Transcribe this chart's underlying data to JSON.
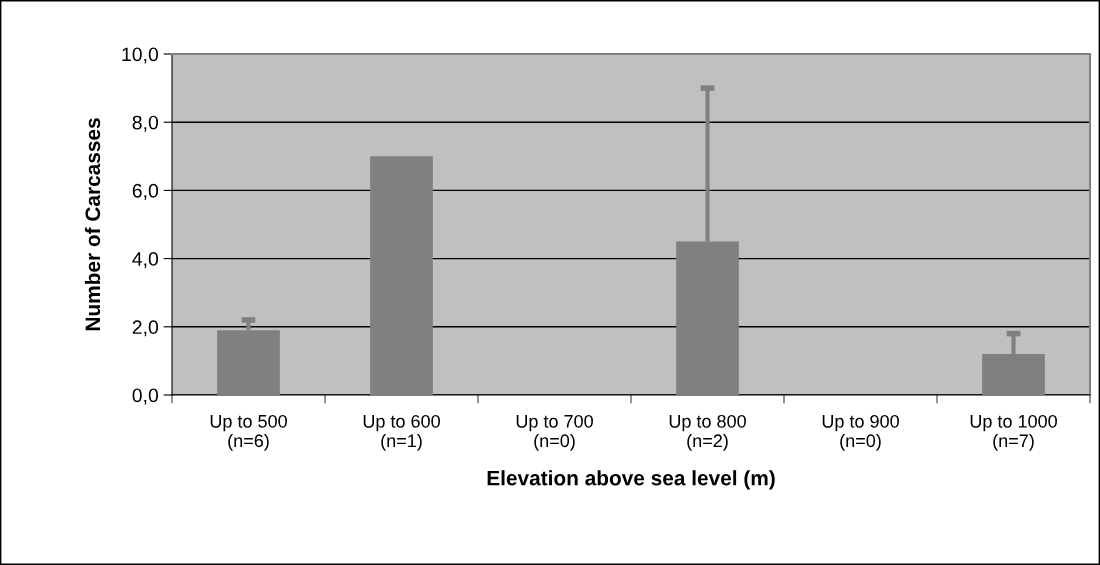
{
  "chart_data": {
    "type": "bar",
    "xlabel": "Elevation above sea level (m)",
    "ylabel": "Number of Carcasses",
    "categories": [
      "Up to 500\n(n=6)",
      "Up to 600\n(n=1)",
      "Up to 700\n(n=0)",
      "Up to 800\n(n=2)",
      "Up to 900\n(n=0)",
      "Up to 1000\n(n=7)"
    ],
    "values": [
      1.9,
      7.0,
      0,
      4.5,
      0,
      1.2
    ],
    "errors": [
      [
        1.9,
        2.2
      ],
      null,
      null,
      [
        4.5,
        9.0
      ],
      null,
      [
        1.2,
        1.8
      ]
    ],
    "color": "#808080",
    "ylim": [
      0,
      10
    ],
    "yticks": [
      {
        "value": 0,
        "label": "0,0"
      },
      {
        "value": 2,
        "label": "2,0"
      },
      {
        "value": 4,
        "label": "4,0"
      },
      {
        "value": 6,
        "label": "6,0"
      },
      {
        "value": 8,
        "label": "8,0"
      },
      {
        "value": 10,
        "label": "10,0"
      }
    ],
    "grid": "y",
    "legend": false
  }
}
